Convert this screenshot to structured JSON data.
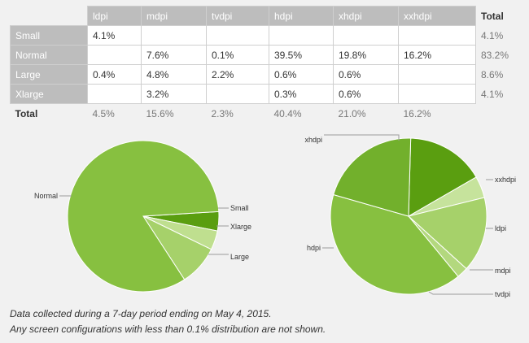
{
  "table": {
    "columns": [
      "ldpi",
      "mdpi",
      "tvdpi",
      "hdpi",
      "xhdpi",
      "xxhdpi"
    ],
    "total_header": "Total",
    "rows": [
      {
        "label": "Small",
        "cells": [
          "4.1%",
          "",
          "",
          "",
          "",
          ""
        ],
        "total": "4.1%"
      },
      {
        "label": "Normal",
        "cells": [
          "",
          "7.6%",
          "0.1%",
          "39.5%",
          "19.8%",
          "16.2%"
        ],
        "total": "83.2%"
      },
      {
        "label": "Large",
        "cells": [
          "0.4%",
          "4.8%",
          "2.2%",
          "0.6%",
          "0.6%",
          ""
        ],
        "total": "8.6%"
      },
      {
        "label": "Xlarge",
        "cells": [
          "",
          "3.2%",
          "",
          "0.3%",
          "0.6%",
          ""
        ],
        "total": "4.1%"
      }
    ],
    "footer": {
      "label": "Total",
      "cells": [
        "4.5%",
        "15.6%",
        "2.3%",
        "40.4%",
        "21.0%",
        "16.2%"
      ]
    }
  },
  "chart_data": [
    {
      "type": "pie",
      "title": "",
      "slices": [
        {
          "label": "Small",
          "value": 4.1,
          "color": "#5a9e10"
        },
        {
          "label": "Xlarge",
          "value": 4.1,
          "color": "#bfdf8f"
        },
        {
          "label": "Large",
          "value": 8.6,
          "color": "#a6d16a"
        },
        {
          "label": "Normal",
          "value": 83.2,
          "color": "#87c040"
        }
      ]
    },
    {
      "type": "pie",
      "title": "",
      "slices": [
        {
          "label": "xxhdpi",
          "value": 16.2,
          "color": "#5a9e10"
        },
        {
          "label": "ldpi",
          "value": 4.5,
          "color": "#c6e39c"
        },
        {
          "label": "mdpi",
          "value": 15.6,
          "color": "#a6d16a"
        },
        {
          "label": "tvdpi",
          "value": 2.3,
          "color": "#b3d87e"
        },
        {
          "label": "hdpi",
          "value": 40.4,
          "color": "#87c040"
        },
        {
          "label": "xhdpi",
          "value": 21.0,
          "color": "#72b02c"
        }
      ]
    }
  ],
  "footnotes": [
    "Data collected during a 7-day period ending on May 4, 2015.",
    "Any screen configurations with less than 0.1% distribution are not shown."
  ]
}
